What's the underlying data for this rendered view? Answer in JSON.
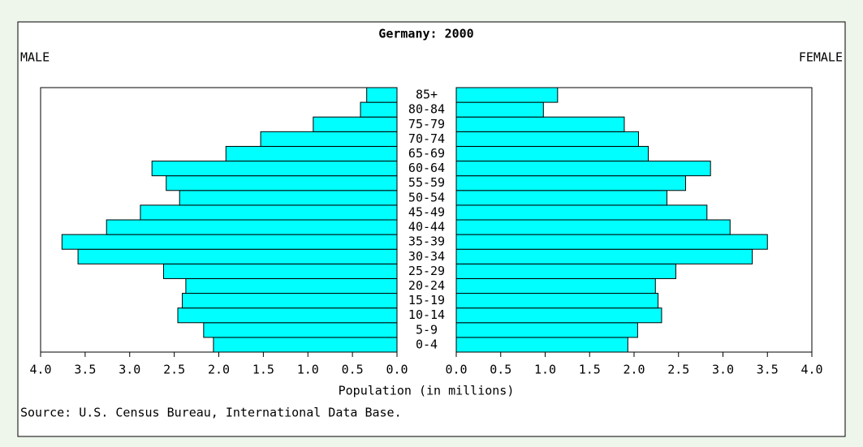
{
  "chart_data": {
    "type": "pyramid",
    "title": "Germany: 2000",
    "left_label": "MALE",
    "right_label": "FEMALE",
    "categories": [
      "0-4",
      "5-9",
      "10-14",
      "15-19",
      "20-24",
      "25-29",
      "30-34",
      "35-39",
      "40-44",
      "45-49",
      "50-54",
      "55-59",
      "60-64",
      "65-69",
      "70-74",
      "75-79",
      "80-84",
      "85+"
    ],
    "series": [
      {
        "name": "MALE",
        "color": "#00ffff",
        "values": [
          2.06,
          2.17,
          2.46,
          2.41,
          2.37,
          2.62,
          3.58,
          3.76,
          3.26,
          2.88,
          2.44,
          2.59,
          2.75,
          1.92,
          1.53,
          0.94,
          0.41,
          0.34
        ]
      },
      {
        "name": "FEMALE",
        "color": "#00ffff",
        "values": [
          1.93,
          2.04,
          2.31,
          2.27,
          2.24,
          2.47,
          3.33,
          3.5,
          3.08,
          2.82,
          2.37,
          2.58,
          2.86,
          2.16,
          2.05,
          1.89,
          0.98,
          1.14
        ]
      }
    ],
    "xlim": [
      0,
      4
    ],
    "xticks": [
      {
        "value": 0,
        "label": "0.0"
      },
      0.5,
      {
        "value": 1,
        "label": "1.0"
      },
      1.5,
      {
        "value": 2,
        "label": "2.0"
      },
      2.5,
      {
        "value": 3,
        "label": "3.0"
      },
      3.5,
      {
        "value": 4,
        "label": "4.0"
      }
    ],
    "xlabel": "Population (in millions)",
    "source": "Source: U.S. Census Bureau, International Data Base."
  }
}
